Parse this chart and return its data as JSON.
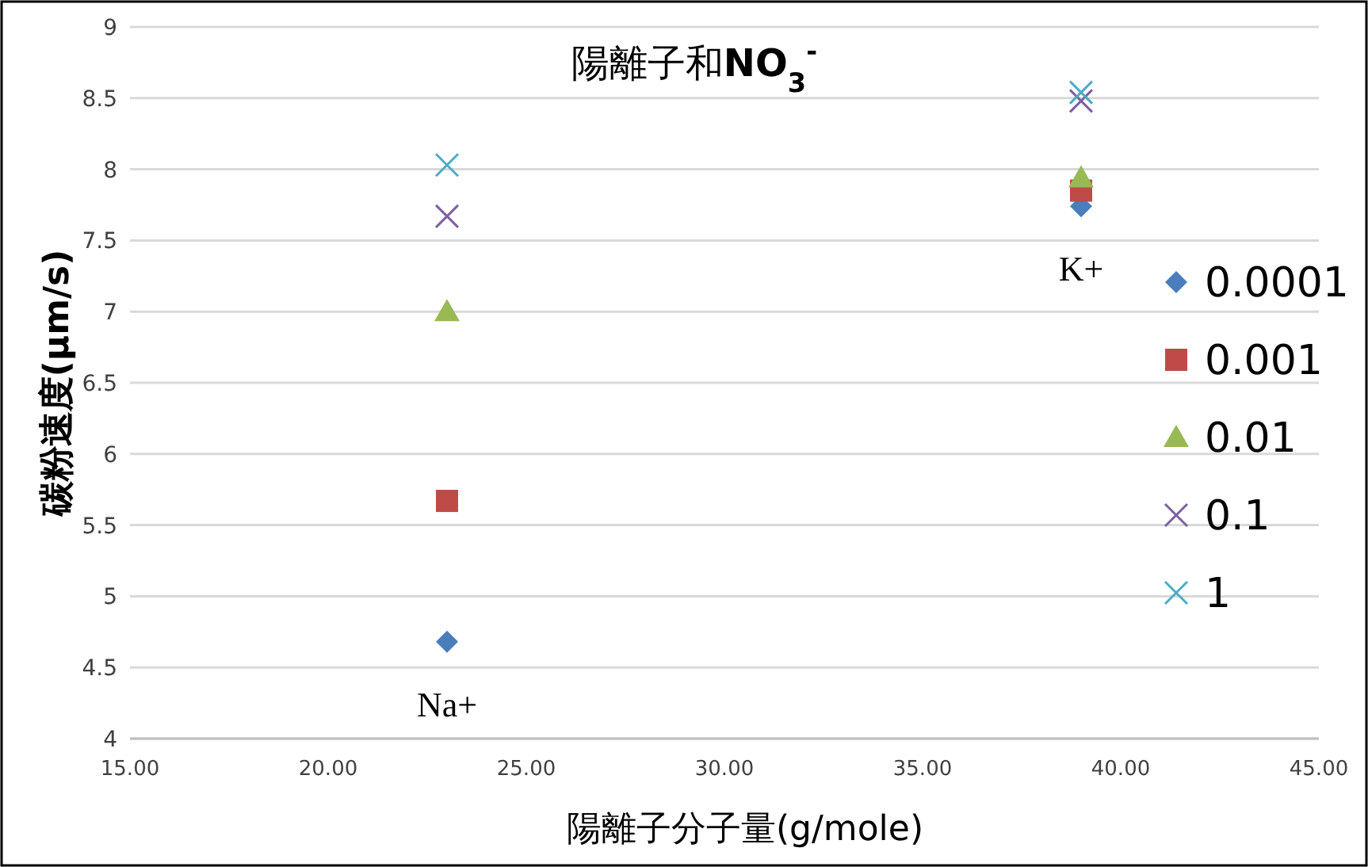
{
  "chart_data": {
    "type": "scatter",
    "title": "陽離子和**NO**$_{3}$$^{-}$",
    "xlabel": "陽離子分子量(g/mole)",
    "ylabel": "碳粉速度(μm/s)",
    "x": [
      23,
      39
    ],
    "series": [
      {
        "name": "0.0001",
        "color": "#4a7ebb",
        "marker": "diamond",
        "values": [
          4.68,
          7.74
        ]
      },
      {
        "name": "0.001",
        "color": "#be4b48",
        "marker": "square",
        "values": [
          5.67,
          7.85
        ]
      },
      {
        "name": "0.01",
        "color": "#98b954",
        "marker": "triangle",
        "values": [
          7.0,
          7.94
        ]
      },
      {
        "name": "0.1",
        "color": "#7d60a0",
        "marker": "cross",
        "values": [
          7.67,
          8.48
        ]
      },
      {
        "name": "1",
        "color": "#4bacc6",
        "marker": "cross",
        "values": [
          8.03,
          8.54
        ]
      }
    ],
    "xlim": [
      15,
      45
    ],
    "xticks": [
      {
        "value": 15,
        "label": "15.00"
      },
      {
        "value": 20,
        "label": "20.00"
      },
      {
        "value": 25,
        "label": "25.00"
      },
      {
        "value": 30,
        "label": "30.00"
      },
      {
        "value": 35,
        "label": "35.00"
      },
      {
        "value": 40,
        "label": "40.00"
      },
      {
        "value": 45,
        "label": "45.00"
      }
    ],
    "ylim": [
      4,
      9
    ],
    "yticks": [
      4,
      4.5,
      5,
      5.5,
      6,
      6.5,
      7,
      7.5,
      8,
      8.5,
      9
    ],
    "grid": "y",
    "legend": "right",
    "annotations": [
      {
        "text": "Na+",
        "x": 23,
        "y": 4.68
      },
      {
        "text": "K+",
        "x": 39,
        "y": 7.74
      }
    ]
  }
}
